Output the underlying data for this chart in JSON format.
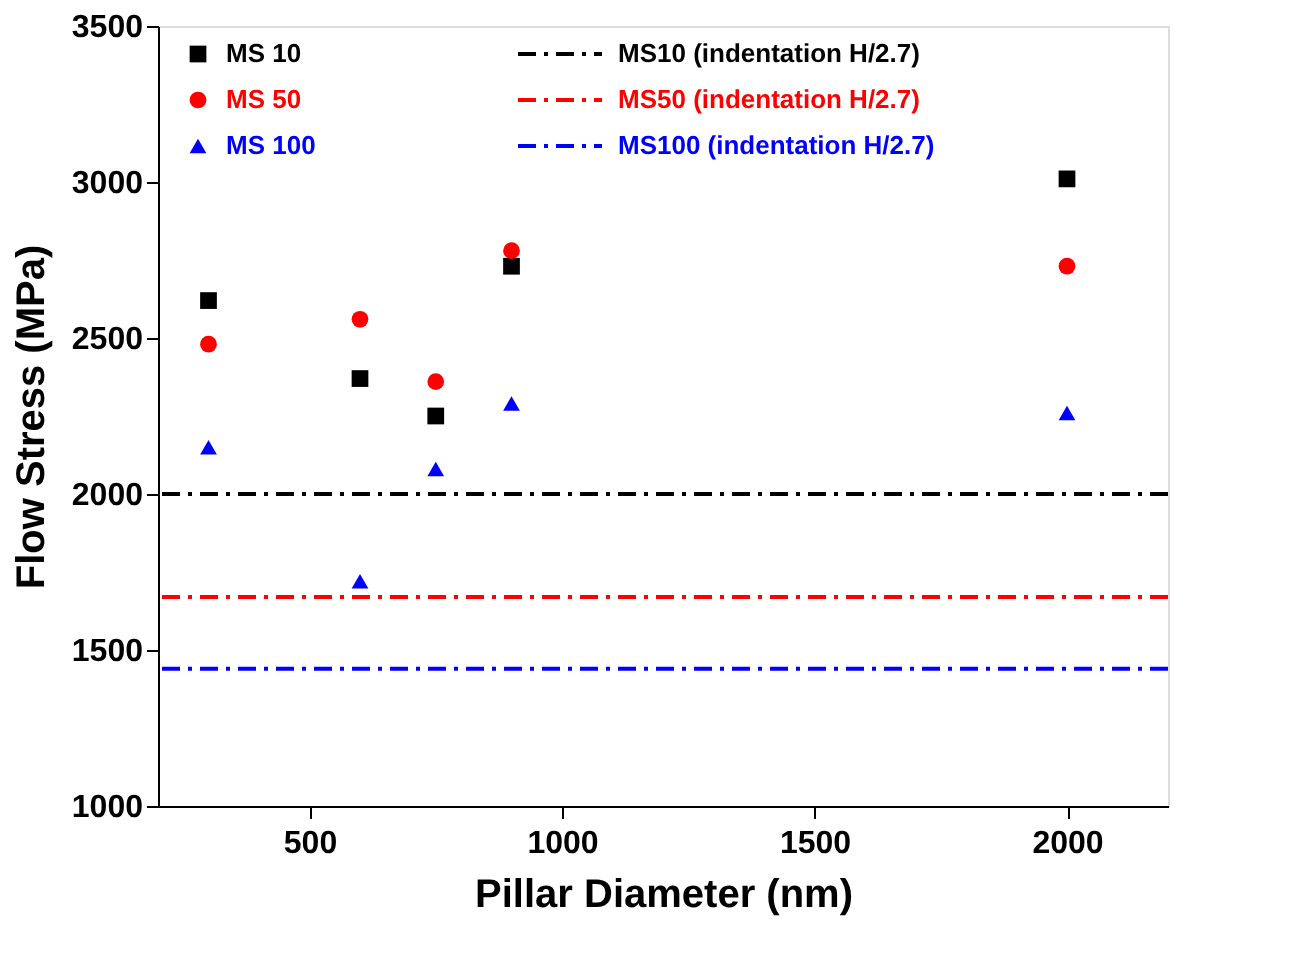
{
  "chart_data": {
    "type": "scatter",
    "xlabel": "Pillar Diameter (nm)",
    "ylabel": "Flow Stress (MPa)",
    "x": [
      300,
      600,
      750,
      900,
      2000
    ],
    "series": [
      {
        "name": "MS 10",
        "color": "#000000",
        "marker": "square",
        "values": [
          2620,
          2370,
          2250,
          2730,
          3010
        ]
      },
      {
        "name": "MS 50",
        "color": "#ff0000",
        "marker": "circle",
        "values": [
          2480,
          2560,
          2360,
          2780,
          2730
        ]
      },
      {
        "name": "MS 100",
        "color": "#0000ff",
        "marker": "triangle",
        "values": [
          2150,
          1720,
          2080,
          2290,
          2260
        ]
      }
    ],
    "ref_lines": [
      {
        "axis": "y",
        "value": 2000,
        "label": "MS10 (indentation H/2.7)",
        "color": "#000000",
        "line_style": "dashdot"
      },
      {
        "axis": "y",
        "value": 1670,
        "label": "MS50 (indentation H/2.7)",
        "color": "#ff0000",
        "line_style": "dashdot"
      },
      {
        "axis": "y",
        "value": 1440,
        "label": "MS100 (indentation H/2.7)",
        "color": "#0000ff",
        "line_style": "dashdot"
      }
    ],
    "xlim": [
      200,
      2200
    ],
    "xticks": [
      500,
      1000,
      1500,
      2000
    ],
    "ylim": [
      1000,
      3500
    ],
    "yticks": [
      1000,
      1500,
      2000,
      2500,
      3000,
      3500
    ],
    "grid": false,
    "legend": "top"
  }
}
